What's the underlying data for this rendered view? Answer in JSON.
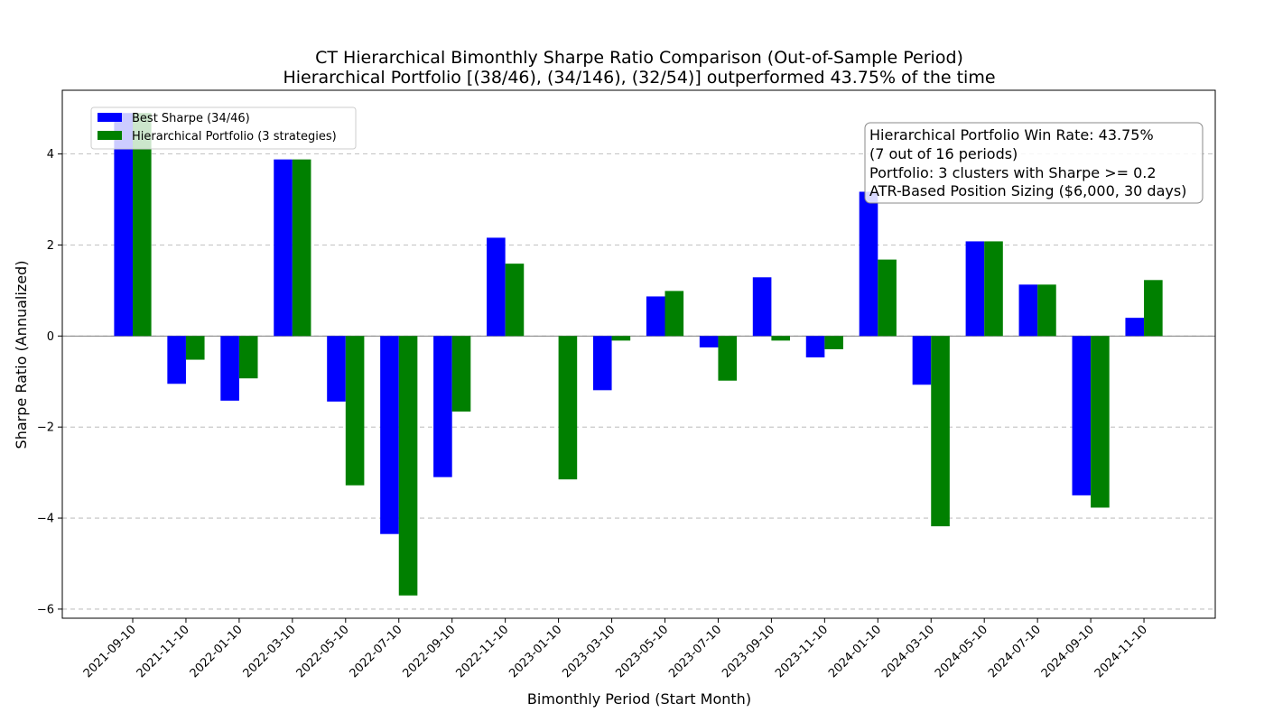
{
  "chart_data": {
    "type": "bar",
    "title": "CT Hierarchical Bimonthly Sharpe Ratio Comparison (Out-of-Sample Period)",
    "subtitle": "Hierarchical Portfolio [(38/46), (34/146), (32/54)] outperformed 43.75% of the time",
    "xlabel": "Bimonthly Period (Start Month)",
    "ylabel": "Sharpe Ratio (Annualized)",
    "ylim": [
      -6.2,
      5.4
    ],
    "yticks": [
      -6,
      -4,
      -2,
      0,
      2,
      4
    ],
    "ytick_labels": [
      "−6",
      "−4",
      "−2",
      "0",
      "2",
      "4"
    ],
    "grid": "y-dashed",
    "legend_position": "top-left",
    "categories": [
      "2021-09-10",
      "2021-11-10",
      "2022-01-10",
      "2022-03-10",
      "2022-05-10",
      "2022-07-10",
      "2022-09-10",
      "2022-11-10",
      "2023-01-10",
      "2023-03-10",
      "2023-05-10",
      "2023-07-10",
      "2023-09-10",
      "2023-11-10",
      "2024-01-10",
      "2024-03-10",
      "2024-05-10",
      "2024-07-10",
      "2024-09-10",
      "2024-11-10"
    ],
    "series": [
      {
        "name": "Best Sharpe (34/46)",
        "color": "#0000ff",
        "values": [
          4.9,
          -1.05,
          -1.42,
          3.88,
          -1.44,
          -4.35,
          -3.1,
          2.16,
          0.0,
          -1.19,
          0.87,
          -0.25,
          1.29,
          -0.47,
          3.17,
          -1.07,
          2.08,
          1.13,
          -3.5,
          0.4
        ]
      },
      {
        "name": "Hierarchical Portfolio (3 strategies)",
        "color": "#008000",
        "values": [
          4.9,
          -0.52,
          -0.93,
          3.88,
          -3.28,
          -5.7,
          -1.66,
          1.59,
          -3.15,
          -0.1,
          0.99,
          -0.98,
          -0.1,
          -0.29,
          1.68,
          -4.18,
          2.08,
          1.13,
          -3.77,
          1.23
        ]
      }
    ],
    "annotation": [
      "Hierarchical Portfolio Win Rate: 43.75%",
      "(7 out of 16 periods)",
      "Portfolio: 3 clusters with Sharpe >= 0.2",
      "ATR-Based Position Sizing ($6,000, 30 days)"
    ]
  }
}
